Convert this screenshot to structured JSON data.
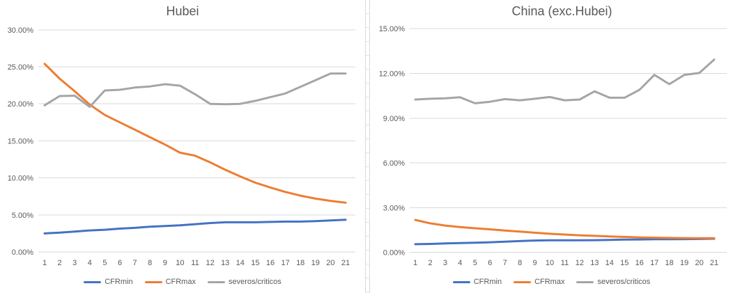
{
  "window": {
    "background": "#ffffff"
  },
  "theme": {
    "grid_color": "#D9D9D9",
    "axis_label_color": "#595959",
    "title_color": "#595959",
    "worksheet_gridline_color": "#E4E4E4",
    "series_colors": {
      "CFRmin": "#4472C4",
      "CFRmax": "#ED7D31",
      "severos_criticos": "#A5A5A5"
    }
  },
  "chart_data": [
    {
      "type": "line",
      "title": "Hubei",
      "categories": [
        "1",
        "2",
        "3",
        "4",
        "5",
        "6",
        "7",
        "8",
        "9",
        "10",
        "11",
        "12",
        "13",
        "14",
        "15",
        "16",
        "17",
        "18",
        "19",
        "20",
        "21"
      ],
      "series": [
        {
          "name": "CFRmin",
          "color": "#4472C4",
          "values": [
            2.5,
            2.6,
            2.75,
            2.9,
            3.0,
            3.15,
            3.25,
            3.4,
            3.5,
            3.6,
            3.75,
            3.9,
            4.0,
            4.0,
            4.0,
            4.05,
            4.1,
            4.1,
            4.15,
            4.25,
            4.35
          ]
        },
        {
          "name": "CFRmax",
          "color": "#ED7D31",
          "values": [
            25.4,
            23.4,
            21.7,
            19.9,
            18.5,
            17.5,
            16.5,
            15.5,
            14.5,
            13.4,
            13.0,
            12.1,
            11.1,
            10.2,
            9.35,
            8.7,
            8.1,
            7.6,
            7.2,
            6.9,
            6.65
          ]
        },
        {
          "name": "severos/criticos",
          "color": "#A5A5A5",
          "values": [
            19.8,
            21.05,
            21.1,
            19.6,
            21.8,
            21.9,
            22.2,
            22.35,
            22.65,
            22.45,
            21.3,
            20.0,
            19.95,
            20.0,
            20.4,
            20.9,
            21.4,
            22.3,
            23.2,
            24.1,
            24.1
          ]
        }
      ],
      "ylim": [
        0,
        30
      ],
      "ytick_values": [
        0,
        5,
        10,
        15,
        20,
        25,
        30
      ],
      "ytick_labels": [
        "0.00%",
        "5.00%",
        "10.00%",
        "15.00%",
        "20.00%",
        "25.00%",
        "30.00%"
      ],
      "unit": "percent",
      "grid": true,
      "legend_position": "bottom",
      "legend_labels": [
        "CFRmin",
        "CFRmax",
        "severos/criticos"
      ]
    },
    {
      "type": "line",
      "title": "China (exc.Hubei)",
      "categories": [
        "1",
        "2",
        "3",
        "4",
        "5",
        "6",
        "7",
        "8",
        "9",
        "10",
        "11",
        "12",
        "13",
        "14",
        "15",
        "16",
        "17",
        "18",
        "19",
        "20",
        "21"
      ],
      "series": [
        {
          "name": "CFRmin",
          "color": "#4472C4",
          "values": [
            0.55,
            0.57,
            0.6,
            0.63,
            0.65,
            0.68,
            0.72,
            0.76,
            0.8,
            0.81,
            0.81,
            0.81,
            0.82,
            0.84,
            0.86,
            0.87,
            0.88,
            0.88,
            0.89,
            0.9,
            0.92
          ]
        },
        {
          "name": "CFRmax",
          "color": "#ED7D31",
          "values": [
            2.18,
            1.95,
            1.8,
            1.7,
            1.62,
            1.55,
            1.47,
            1.4,
            1.32,
            1.25,
            1.2,
            1.15,
            1.11,
            1.07,
            1.04,
            1.01,
            0.99,
            0.97,
            0.96,
            0.95,
            0.95
          ]
        },
        {
          "name": "severos/criticos",
          "color": "#A5A5A5",
          "values": [
            10.25,
            10.3,
            10.33,
            10.4,
            10.0,
            10.1,
            10.28,
            10.2,
            10.3,
            10.42,
            10.2,
            10.25,
            10.8,
            10.37,
            10.37,
            10.9,
            11.9,
            11.28,
            11.9,
            12.03,
            12.93
          ]
        }
      ],
      "ylim": [
        0,
        15
      ],
      "ytick_values": [
        0,
        3,
        6,
        9,
        12,
        15
      ],
      "ytick_labels": [
        "0.00%",
        "3.00%",
        "6.00%",
        "9.00%",
        "12.00%",
        "15.00%"
      ],
      "unit": "percent",
      "grid": true,
      "legend_position": "bottom",
      "legend_labels": [
        "CFRmin",
        "CFRmax",
        "severos/criticos"
      ]
    }
  ]
}
